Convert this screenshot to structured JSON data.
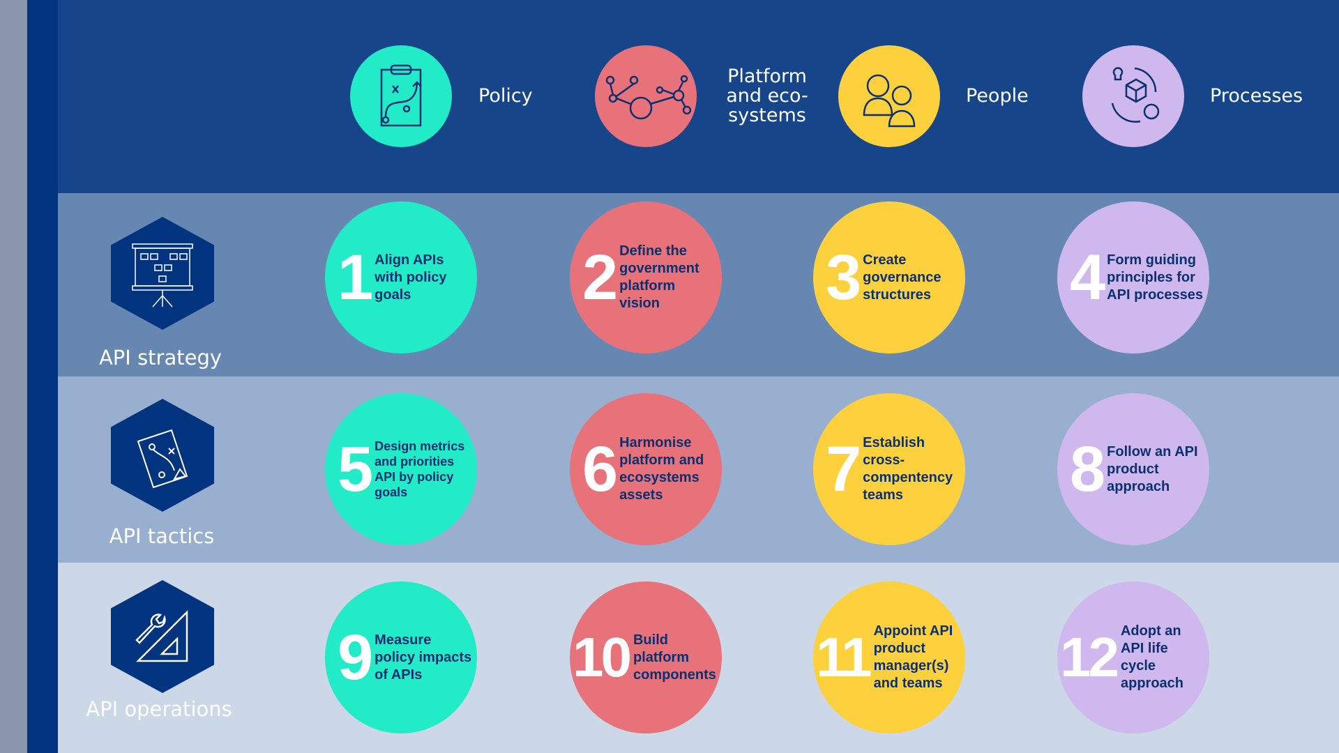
{
  "colors": {
    "policy": "#22ebc8",
    "platform": "#e8727a",
    "people": "#fdd13d",
    "processes": "#cfb8ee",
    "header_bg": "#164589"
  },
  "columns": [
    {
      "label": "Policy",
      "icon": "clipboard-strategy-icon"
    },
    {
      "label": "Platform and eco-systems",
      "line1": "Platform",
      "line2": "and eco-",
      "line3": "systems",
      "icon": "network-nodes-icon"
    },
    {
      "label": "People",
      "icon": "people-icon"
    },
    {
      "label": "Processes",
      "icon": "process-cycle-icon"
    }
  ],
  "rows": [
    {
      "label": "API strategy",
      "icon": "presentation-board-icon",
      "items": [
        {
          "num": "1",
          "text": "Align APIs with policy goals"
        },
        {
          "num": "2",
          "text": "Define the government platform vision"
        },
        {
          "num": "3",
          "text": "Create governance structures"
        },
        {
          "num": "4",
          "text": "Form guiding principles for API processes"
        }
      ]
    },
    {
      "label": "API tactics",
      "icon": "tactics-map-icon",
      "items": [
        {
          "num": "5",
          "text": "Design metrics and priorities API by policy goals"
        },
        {
          "num": "6",
          "text": "Harmonise platform and ecosystems assets"
        },
        {
          "num": "7",
          "text": "Establish cross-compentency teams"
        },
        {
          "num": "8",
          "text": "Follow an API product approach"
        }
      ]
    },
    {
      "label": "API operations",
      "icon": "wrench-ruler-icon",
      "items": [
        {
          "num": "9",
          "text": "Measure policy impacts of APIs"
        },
        {
          "num": "10",
          "text": "Build platform components"
        },
        {
          "num": "11",
          "text": "Appoint API product manager(s) and teams"
        },
        {
          "num": "12",
          "text": "Adopt an API life cycle approach"
        }
      ]
    }
  ]
}
